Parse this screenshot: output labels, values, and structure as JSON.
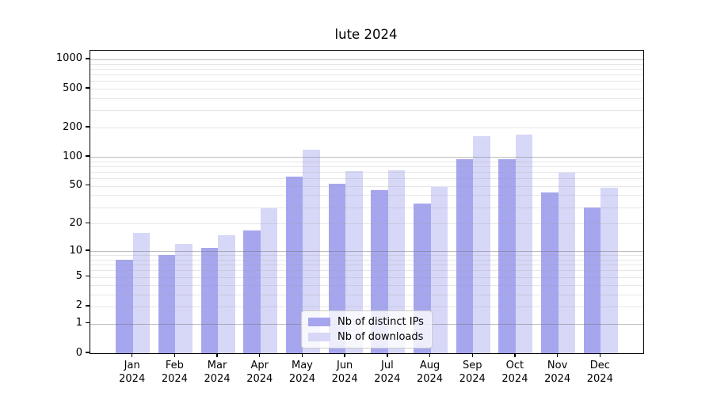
{
  "title": "lute 2024",
  "colors": {
    "bar_ips": "#a6a6ef",
    "bar_downloads": "#d7d7f7",
    "grid_major": "#c2c2c2",
    "grid_minor": "#e7e7e7",
    "spine": "#000000",
    "legend_border": "#cccccc",
    "background": "#ffffff"
  },
  "legend": {
    "items": [
      {
        "label": "Nb of distinct IPs",
        "color": "#a6a6ef"
      },
      {
        "label": "Nb of downloads",
        "color": "#d7d7f7"
      }
    ],
    "position": "lower center"
  },
  "chart_data": {
    "type": "bar",
    "title": "lute 2024",
    "categories": [
      "Jan 2024",
      "Feb 2024",
      "Mar 2024",
      "Apr 2024",
      "May 2024",
      "Jun 2024",
      "Jul 2024",
      "Aug 2024",
      "Sep 2024",
      "Oct 2024",
      "Nov 2024",
      "Dec 2024"
    ],
    "series": [
      {
        "name": "Nb of distinct IPs",
        "color": "#a6a6ef",
        "values": [
          8,
          9,
          11,
          17,
          62,
          53,
          45,
          33,
          95,
          94,
          43,
          30
        ]
      },
      {
        "name": "Nb of downloads",
        "color": "#d7d7f7",
        "values": [
          16,
          12,
          15,
          29,
          118,
          72,
          73,
          49,
          163,
          169,
          69,
          48
        ]
      }
    ],
    "xlabel": "",
    "ylabel": "",
    "y_scale": {
      "type": "log1p",
      "ticks": [
        0,
        1,
        2,
        5,
        10,
        20,
        50,
        100,
        200,
        500,
        1000
      ],
      "major_gridlines": [
        1,
        10,
        100,
        1000
      ],
      "minor_gridlines": [
        2,
        3,
        4,
        6,
        7,
        8,
        9,
        20,
        30,
        40,
        60,
        70,
        80,
        90,
        200,
        300,
        400,
        600,
        700,
        800,
        900,
        5,
        50,
        500
      ],
      "ylim": [
        0,
        1224
      ]
    },
    "grid": true,
    "legend_position": "lower center"
  }
}
